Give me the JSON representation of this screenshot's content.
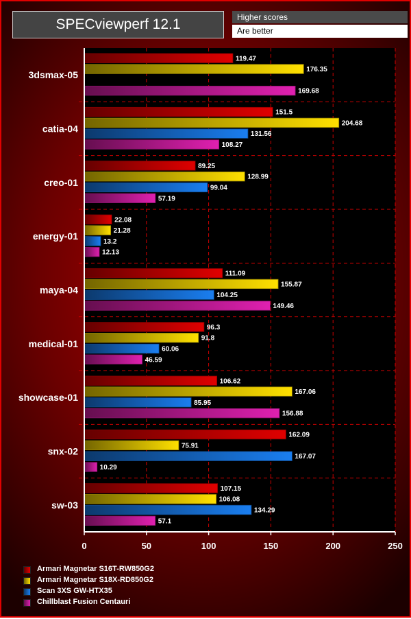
{
  "header": {
    "title": "SPECviewperf 12.1",
    "note_line1": "Higher scores",
    "note_line2": "Are better"
  },
  "chart_data": {
    "type": "bar",
    "orientation": "horizontal",
    "title": "SPECviewperf 12.1",
    "xlabel": "",
    "ylabel": "",
    "xlim": [
      0,
      250
    ],
    "ticks": [
      0,
      50,
      100,
      150,
      200,
      250
    ],
    "grid": true,
    "legend_position": "bottom-left",
    "categories": [
      "3dsmax-05",
      "catia-04",
      "creo-01",
      "energy-01",
      "maya-04",
      "medical-01",
      "showcase-01",
      "snx-02",
      "sw-03"
    ],
    "series": [
      {
        "name": "Armari Magnetar S16T-RW850G2",
        "color": "#e00000",
        "values": [
          119.47,
          151.5,
          89.25,
          22.08,
          111.09,
          96.3,
          106.62,
          162.09,
          107.15
        ]
      },
      {
        "name": "Armari Magnetar S18X-RD850G2",
        "color": "#ffe000",
        "values": [
          176.35,
          204.68,
          128.99,
          21.28,
          155.87,
          91.8,
          167.06,
          75.91,
          106.08
        ]
      },
      {
        "name": "Scan 3XS GW-HTX35",
        "color": "#1a7ef0",
        "values": [
          null,
          131.56,
          99.04,
          13.2,
          104.25,
          60.06,
          85.95,
          167.07,
          134.29
        ]
      },
      {
        "name": "Chillblast Fusion Centauri",
        "color": "#e020b0",
        "values": [
          169.68,
          108.27,
          57.19,
          12.13,
          149.46,
          46.59,
          156.88,
          10.29,
          57.1
        ]
      }
    ]
  }
}
